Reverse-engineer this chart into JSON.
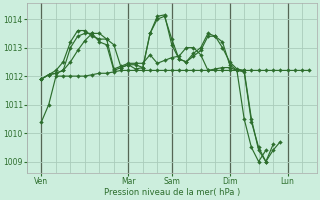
{
  "background_color": "#cceedd",
  "grid_color": "#aaccbb",
  "line_color": "#2d6e2d",
  "sep_color": "#556655",
  "xlabel": "Pression niveau de la mer( hPa )",
  "ylim": [
    1008.6,
    1014.55
  ],
  "yticks": [
    1009,
    1010,
    1011,
    1012,
    1013,
    1014
  ],
  "day_labels": [
    "Ven",
    "Mar",
    "Sam",
    "Dim",
    "Lun"
  ],
  "day_positions": [
    2,
    14,
    20,
    28,
    36
  ],
  "xlim": [
    0,
    40
  ],
  "series": [
    {
      "x": [
        2,
        3,
        4,
        5,
        6,
        7,
        8,
        9,
        10,
        11,
        12,
        13,
        14,
        15,
        16,
        17,
        18,
        19,
        20,
        21,
        22,
        23,
        24,
        25,
        26,
        27,
        28,
        29,
        30,
        31,
        32,
        33,
        34,
        35,
        36,
        37,
        38,
        39
      ],
      "y": [
        1010.4,
        1011.0,
        1012.0,
        1012.0,
        1012.0,
        1012.0,
        1012.0,
        1012.05,
        1012.1,
        1012.1,
        1012.15,
        1012.2,
        1012.2,
        1012.2,
        1012.2,
        1012.2,
        1012.2,
        1012.2,
        1012.2,
        1012.2,
        1012.2,
        1012.2,
        1012.2,
        1012.2,
        1012.2,
        1012.2,
        1012.2,
        1012.2,
        1012.2,
        1012.2,
        1012.2,
        1012.2,
        1012.2,
        1012.2,
        1012.2,
        1012.2,
        1012.2,
        1012.2
      ]
    },
    {
      "x": [
        2,
        3,
        4,
        5,
        6,
        7,
        8,
        9,
        10,
        11,
        12,
        13,
        14,
        15,
        16,
        17,
        18,
        19,
        20,
        21,
        22,
        23,
        24,
        25,
        26,
        27,
        28,
        29,
        30,
        31,
        32,
        33
      ],
      "y": [
        1011.9,
        1012.05,
        1012.1,
        1012.2,
        1012.5,
        1012.9,
        1013.25,
        1013.5,
        1013.5,
        1013.3,
        1012.25,
        1012.35,
        1012.45,
        1012.45,
        1012.45,
        1012.75,
        1012.45,
        1012.55,
        1012.65,
        1012.7,
        1013.0,
        1013.0,
        1012.75,
        1012.2,
        1012.25,
        1012.3,
        1012.3,
        1012.2,
        1010.5,
        1009.5,
        1009.0,
        1009.4
      ]
    },
    {
      "x": [
        2,
        3,
        4,
        5,
        6,
        7,
        8,
        9,
        10,
        11,
        12,
        13,
        14,
        15,
        16,
        17,
        18,
        19,
        20,
        21,
        22,
        23,
        24,
        25,
        26,
        27,
        28,
        29,
        30,
        31,
        32,
        33,
        34
      ],
      "y": [
        1011.9,
        1012.05,
        1012.2,
        1012.5,
        1013.2,
        1013.6,
        1013.6,
        1013.4,
        1013.3,
        1013.3,
        1013.1,
        1012.3,
        1012.4,
        1012.25,
        1012.3,
        1013.5,
        1014.0,
        1014.1,
        1013.3,
        1012.6,
        1012.5,
        1012.8,
        1013.0,
        1013.5,
        1013.4,
        1013.0,
        1012.5,
        1012.25,
        1012.2,
        1010.5,
        1009.4,
        1009.0,
        1009.6
      ]
    },
    {
      "x": [
        2,
        3,
        4,
        5,
        6,
        7,
        8,
        9,
        10,
        11,
        12,
        13,
        14,
        15,
        16,
        17,
        18,
        19,
        20,
        21,
        22,
        23,
        24,
        25,
        26,
        27,
        28,
        29,
        30,
        31,
        32,
        33,
        34,
        35
      ],
      "y": [
        1011.9,
        1012.05,
        1012.1,
        1012.2,
        1013.0,
        1013.4,
        1013.5,
        1013.5,
        1013.2,
        1013.1,
        1012.2,
        1012.3,
        1012.4,
        1012.4,
        1012.3,
        1013.5,
        1014.1,
        1014.15,
        1013.1,
        1012.6,
        1012.5,
        1012.7,
        1012.9,
        1013.4,
        1013.4,
        1013.2,
        1012.4,
        1012.2,
        1012.15,
        1010.4,
        1009.5,
        1009.0,
        1009.4,
        1009.7
      ]
    }
  ]
}
